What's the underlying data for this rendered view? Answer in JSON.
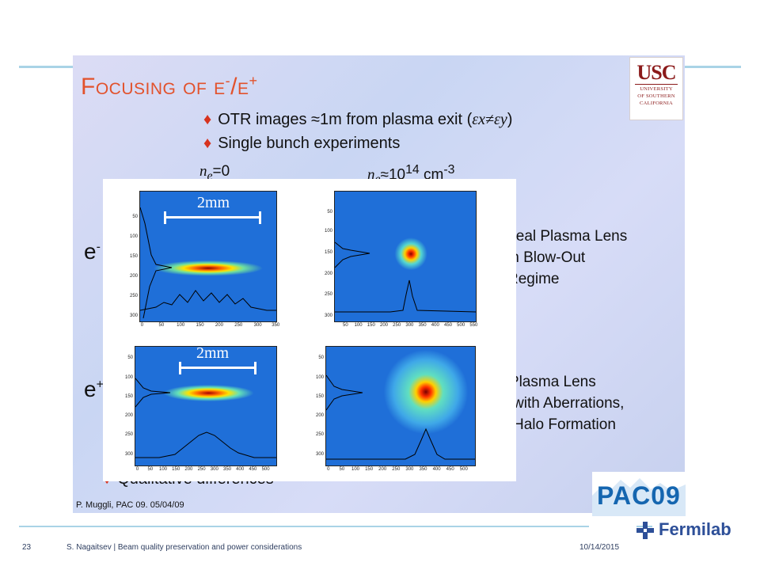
{
  "slide": {
    "title_prefix": "Focusing of e",
    "title_minus": "-",
    "title_slash": "/e",
    "title_plus": "+",
    "bullets": [
      {
        "text": "OTR images ≈1m from plasma exit (",
        "math": "εx≠εy",
        "close": ")"
      },
      {
        "text": "Single bunch experiments"
      }
    ],
    "ne_zero_prefix": "n",
    "ne_zero_sub": "e",
    "ne_zero_value": "=0",
    "ne_plasma_prefix": "n",
    "ne_plasma_sub": "e",
    "ne_plasma_value": "≈10",
    "ne_plasma_exp": "14",
    "ne_plasma_unit": " cm",
    "ne_plasma_unit_exp": "-3",
    "electron_label": "e",
    "electron_sign": "-",
    "positron_label": "e",
    "positron_sign": "+",
    "scale_label": "2mm",
    "electron_note": [
      "Ideal Plasma Lens",
      "in Blow-Out",
      "Regime"
    ],
    "positron_note": [
      "Plasma Lens",
      "with Aberrations,",
      "Halo Formation"
    ],
    "qualitative": "Qualitative differences",
    "credit": "P. Muggli, PAC 09. 05/04/09"
  },
  "plots": {
    "electron_y_ticks": [
      "50",
      "100",
      "150",
      "200",
      "250",
      "300"
    ],
    "electron_x_ticks": [
      "0",
      "50",
      "100",
      "150",
      "200",
      "250",
      "300",
      "350"
    ],
    "electron_lens_y_ticks": [
      "50",
      "100",
      "150",
      "200",
      "250",
      "300"
    ],
    "electron_lens_x_ticks": [
      "50",
      "100",
      "150",
      "200",
      "250",
      "300",
      "350",
      "400",
      "450",
      "500",
      "550"
    ],
    "positron_y_ticks": [
      "50",
      "100",
      "150",
      "200",
      "250",
      "300"
    ],
    "positron_x_ticks": [
      "0",
      "50",
      "100",
      "150",
      "200",
      "250",
      "300",
      "350",
      "400",
      "450",
      "500"
    ],
    "positron_lens_y_ticks": [
      "50",
      "100",
      "150",
      "200",
      "250",
      "300"
    ],
    "positron_lens_x_ticks": [
      "0",
      "50",
      "100",
      "150",
      "200",
      "250",
      "300",
      "350",
      "400",
      "450",
      "500"
    ]
  },
  "logos": {
    "usc_big": "USC",
    "usc_line1": "UNIVERSITY",
    "usc_line2": "OF SOUTHERN",
    "usc_line3": "CALIFORNIA",
    "pac": "PAC09",
    "fermilab": "Fermilab"
  },
  "footer": {
    "page": "23",
    "author_text": "S. Nagaitsev | Beam quality preservation and power considerations",
    "date": "10/14/2015"
  },
  "colors": {
    "title": "#e2522c",
    "accent_red": "#d7331f",
    "rule": "#a9d3e6",
    "fermilab_blue": "#2d4f98"
  }
}
